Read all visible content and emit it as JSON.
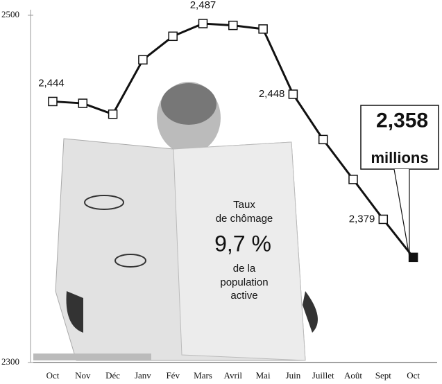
{
  "chart_data": {
    "type": "line",
    "categories": [
      "Oct",
      "Nov",
      "Déc",
      "Janv",
      "Fév",
      "Mars",
      "Avril",
      "Mai",
      "Juin",
      "Juillet",
      "Août",
      "Sept",
      "Oct"
    ],
    "series": [
      {
        "color": "#111111",
        "values": [
          2444,
          2443,
          2437,
          2467,
          2480,
          2487,
          2486,
          2484,
          2448,
          2423,
          2401,
          2379,
          2358
        ],
        "value_labels": [
          "2,444",
          null,
          null,
          null,
          null,
          "2,487",
          null,
          null,
          "2,448",
          null,
          null,
          "2,379",
          "2,358"
        ]
      }
    ],
    "ylim": [
      2300,
      2500
    ],
    "yticks": [
      2300,
      2500
    ],
    "annotations": [
      "millions",
      "Taux",
      "de chômage",
      "9,7 %",
      "de la",
      "population",
      "active"
    ]
  }
}
